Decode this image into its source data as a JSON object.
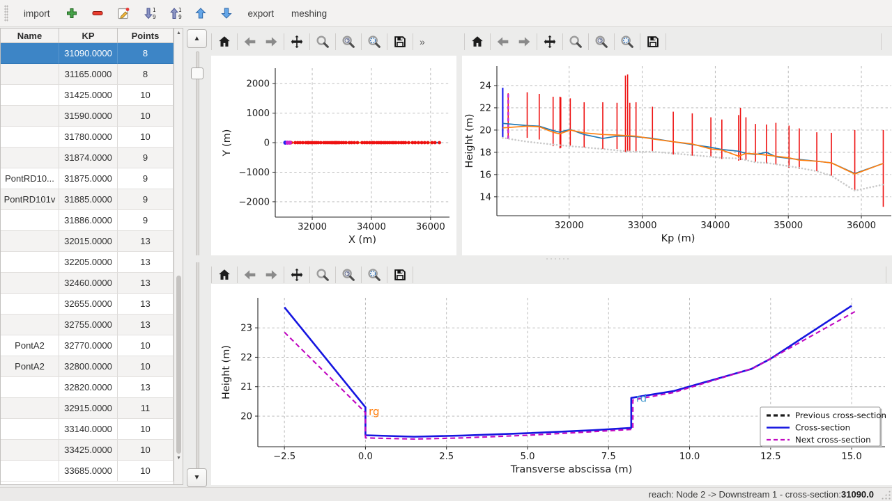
{
  "app_toolbar": {
    "items": [
      {
        "name": "import-button",
        "type": "text",
        "label": "import"
      },
      {
        "name": "add-button",
        "type": "icon",
        "icon": "add"
      },
      {
        "name": "remove-button",
        "type": "icon",
        "icon": "remove"
      },
      {
        "name": "edit-button",
        "type": "icon",
        "icon": "edit"
      },
      {
        "name": "sort-descending-button",
        "type": "icon",
        "icon": "sort-desc"
      },
      {
        "name": "sort-ascending-button",
        "type": "icon",
        "icon": "sort-asc"
      },
      {
        "name": "move-up-button",
        "type": "icon",
        "icon": "arrow-up"
      },
      {
        "name": "move-down-button",
        "type": "icon",
        "icon": "arrow-down"
      },
      {
        "name": "export-button",
        "type": "text",
        "label": "export"
      },
      {
        "name": "meshing-button",
        "type": "text",
        "label": "meshing"
      }
    ]
  },
  "table": {
    "headers": [
      "Name",
      "KP",
      "Points"
    ],
    "selected_index": 0,
    "rows": [
      [
        "",
        "31090.0000",
        "8"
      ],
      [
        "",
        "31165.0000",
        "8"
      ],
      [
        "",
        "31425.0000",
        "10"
      ],
      [
        "",
        "31590.0000",
        "10"
      ],
      [
        "",
        "31780.0000",
        "10"
      ],
      [
        "",
        "31874.0000",
        "9"
      ],
      [
        "PontRD10...",
        "31875.0000",
        "9"
      ],
      [
        "PontRD101v",
        "31885.0000",
        "9"
      ],
      [
        "",
        "31886.0000",
        "9"
      ],
      [
        "",
        "32015.0000",
        "13"
      ],
      [
        "",
        "32205.0000",
        "13"
      ],
      [
        "",
        "32460.0000",
        "13"
      ],
      [
        "",
        "32655.0000",
        "13"
      ],
      [
        "",
        "32755.0000",
        "13"
      ],
      [
        "PontA2",
        "32770.0000",
        "10"
      ],
      [
        "PontA2",
        "32800.0000",
        "10"
      ],
      [
        "",
        "32820.0000",
        "13"
      ],
      [
        "",
        "32915.0000",
        "11"
      ],
      [
        "",
        "33140.0000",
        "10"
      ],
      [
        "",
        "33425.0000",
        "10"
      ],
      [
        "",
        "33685.0000",
        "10"
      ]
    ]
  },
  "plot_toolbar": {
    "buttons": [
      "home",
      "back",
      "forward",
      "pan",
      "zoom",
      "zoom-one",
      "zoom-fit",
      "save"
    ],
    "overflow_label": "»"
  },
  "status_bar": {
    "label": "reach: Node 2 -> Downstream 1 - cross-section: ",
    "value": "31090.0"
  },
  "chart_data": [
    {
      "id": "trajectory",
      "type": "line",
      "xlabel": "X (m)",
      "ylabel": "Y (m)",
      "xlim": [
        30750,
        36640
      ],
      "ylim": [
        -2520,
        2520
      ],
      "xticks": {
        "values": [
          32000,
          34000,
          36000
        ],
        "labels": [
          "32000",
          "34000",
          "36000"
        ]
      },
      "yticks": {
        "values": [
          -2000,
          -1000,
          0,
          1000,
          2000
        ],
        "labels": [
          "−2000",
          "−1000",
          "0",
          "1000",
          "2000"
        ]
      },
      "grid": true,
      "series": [
        {
          "name": "reach-axis-blue",
          "color": "#1f77b4",
          "width": 2.2,
          "points": [
            [
              31090,
              0
            ],
            [
              36300,
              0
            ]
          ]
        },
        {
          "name": "reach-axis-orange",
          "color": "#ff7f0e",
          "width": 2.2,
          "points": [
            [
              31090,
              0
            ],
            [
              36100,
              0
            ]
          ]
        }
      ],
      "red_marker_kps": [
        31165,
        31290,
        31425,
        31510,
        31590,
        31680,
        31780,
        31845,
        31874,
        31886,
        31960,
        32015,
        32085,
        32140,
        32205,
        32290,
        32390,
        32460,
        32530,
        32600,
        32655,
        32700,
        32755,
        32770,
        32800,
        32820,
        32870,
        32915,
        32990,
        33060,
        33140,
        33250,
        33330,
        33425,
        33530,
        33685,
        33770,
        33850,
        33940,
        34030,
        34090,
        34180,
        34250,
        34320,
        34340,
        34420,
        34480,
        34550,
        34620,
        34700,
        34760,
        34830,
        34920,
        35010,
        35080,
        35150,
        35260,
        35390,
        35480,
        35590,
        35700,
        35800,
        35910,
        36050,
        36150,
        36300
      ],
      "red_marker_color": "#ee1111",
      "highlight_markers": [
        {
          "x": 31090,
          "y": 0,
          "color": "#2222ee"
        },
        {
          "x": 31165,
          "y": 0,
          "color": "#cc22cc"
        },
        {
          "x": 31245,
          "y": 0,
          "color": "#cc22cc"
        }
      ]
    },
    {
      "id": "longitudinal-profile",
      "type": "line",
      "xlabel": "Kp (m)",
      "ylabel": "Height (m)",
      "xlim": [
        31010,
        36410
      ],
      "ylim": [
        12.3,
        25.75
      ],
      "xticks": {
        "values": [
          32000,
          33000,
          34000,
          35000,
          36000
        ],
        "labels": [
          "32000",
          "33000",
          "34000",
          "35000",
          "36000"
        ]
      },
      "yticks": {
        "values": [
          14,
          16,
          18,
          20,
          22,
          24
        ],
        "labels": [
          "14",
          "16",
          "18",
          "20",
          "22",
          "24"
        ]
      },
      "grid": true,
      "vlines": [
        {
          "name": "current-cross-section",
          "x": 31090,
          "y0": 19.35,
          "y1": 23.8,
          "color": "#2222ee",
          "width": 2.2,
          "dash": null
        },
        {
          "name": "next-cross-section",
          "x": 31165,
          "y0": 19.2,
          "y1": 23.3,
          "color": "#cc22cc",
          "width": 2.4,
          "dash": "5,3.5"
        }
      ],
      "bars": {
        "color": "#ee1111",
        "width": 1.6,
        "data": [
          [
            31165,
            19.2,
            23.3
          ],
          [
            31425,
            19.3,
            23.4
          ],
          [
            31590,
            19.15,
            23.25
          ],
          [
            31780,
            18.55,
            23.0
          ],
          [
            31874,
            18.35,
            23.0
          ],
          [
            31885,
            18.4,
            22.95
          ],
          [
            32015,
            18.6,
            22.85
          ],
          [
            32205,
            18.45,
            22.5
          ],
          [
            32460,
            18.3,
            22.5
          ],
          [
            32655,
            18.3,
            22.45
          ],
          [
            32770,
            18.05,
            24.9
          ],
          [
            32800,
            18.05,
            25.0
          ],
          [
            32830,
            18.1,
            22.45
          ],
          [
            32915,
            18.05,
            22.5
          ],
          [
            33140,
            18.0,
            22.1
          ],
          [
            33425,
            17.8,
            21.65
          ],
          [
            33685,
            17.7,
            21.5
          ],
          [
            33940,
            17.6,
            21.15
          ],
          [
            34090,
            17.4,
            20.95
          ],
          [
            34320,
            17.25,
            21.35
          ],
          [
            34345,
            17.3,
            22.0
          ],
          [
            34420,
            17.3,
            21.15
          ],
          [
            34550,
            17.15,
            20.55
          ],
          [
            34700,
            17.0,
            20.5
          ],
          [
            34830,
            16.9,
            20.65
          ],
          [
            35010,
            16.6,
            20.4
          ],
          [
            35150,
            16.5,
            20.15
          ],
          [
            35390,
            16.3,
            19.8
          ],
          [
            35590,
            15.9,
            19.75
          ],
          [
            35910,
            14.6,
            20.0
          ],
          [
            36300,
            13.1,
            20.0
          ]
        ]
      },
      "series": [
        {
          "name": "left-bank",
          "color": "#1f77b4",
          "width": 1.7,
          "points": [
            [
              31090,
              20.6
            ],
            [
              31425,
              20.4
            ],
            [
              31590,
              20.35
            ],
            [
              31780,
              19.95
            ],
            [
              31874,
              19.8
            ],
            [
              31886,
              19.85
            ],
            [
              32015,
              20.05
            ],
            [
              32205,
              19.6
            ],
            [
              32460,
              19.25
            ],
            [
              32655,
              19.45
            ],
            [
              32770,
              19.45
            ],
            [
              32915,
              19.4
            ],
            [
              33140,
              19.25
            ],
            [
              33425,
              18.95
            ],
            [
              33685,
              18.7
            ],
            [
              33940,
              18.45
            ],
            [
              34090,
              18.25
            ],
            [
              34320,
              18.1
            ],
            [
              34420,
              17.9
            ],
            [
              34550,
              17.8
            ],
            [
              34700,
              18.0
            ],
            [
              34830,
              17.6
            ],
            [
              35010,
              17.45
            ],
            [
              35150,
              17.35
            ],
            [
              35390,
              17.2
            ],
            [
              35590,
              17.05
            ],
            [
              35910,
              16.1
            ],
            [
              36300,
              17.0
            ]
          ]
        },
        {
          "name": "right-bank",
          "color": "#ff7f0e",
          "width": 1.7,
          "points": [
            [
              31090,
              20.2
            ],
            [
              31425,
              20.35
            ],
            [
              31590,
              20.3
            ],
            [
              31780,
              19.8
            ],
            [
              31874,
              19.65
            ],
            [
              31886,
              19.7
            ],
            [
              32015,
              20.0
            ],
            [
              32205,
              19.75
            ],
            [
              32460,
              19.6
            ],
            [
              32655,
              19.55
            ],
            [
              32770,
              19.5
            ],
            [
              32915,
              19.45
            ],
            [
              33140,
              19.2
            ],
            [
              33425,
              18.95
            ],
            [
              33685,
              18.75
            ],
            [
              33940,
              18.3
            ],
            [
              34090,
              18.2
            ],
            [
              34320,
              17.65
            ],
            [
              34420,
              17.9
            ],
            [
              34550,
              17.85
            ],
            [
              34700,
              17.75
            ],
            [
              34830,
              17.65
            ],
            [
              35010,
              17.5
            ],
            [
              35150,
              17.3
            ],
            [
              35390,
              17.2
            ],
            [
              35590,
              17.05
            ],
            [
              35910,
              16.05
            ],
            [
              36300,
              17.0
            ]
          ]
        },
        {
          "name": "lowest-point",
          "color": "#c9c9c9",
          "width": 2.6,
          "dash": "0.1,4.5",
          "linecap": "round",
          "points": [
            [
              31090,
              19.3
            ],
            [
              31425,
              18.95
            ],
            [
              31780,
              18.7
            ],
            [
              32015,
              18.55
            ],
            [
              32460,
              18.3
            ],
            [
              32770,
              18.1
            ],
            [
              32915,
              18.05
            ],
            [
              33140,
              18.05
            ],
            [
              33425,
              17.9
            ],
            [
              33685,
              17.75
            ],
            [
              33940,
              17.6
            ],
            [
              34090,
              17.5
            ],
            [
              34320,
              17.45
            ],
            [
              34550,
              17.1
            ],
            [
              34700,
              17.05
            ],
            [
              35010,
              16.75
            ],
            [
              35150,
              16.6
            ],
            [
              35390,
              16.3
            ],
            [
              35590,
              15.9
            ],
            [
              35910,
              14.55
            ],
            [
              36300,
              15.1
            ]
          ]
        }
      ]
    },
    {
      "id": "cross-section",
      "type": "line",
      "xlabel": "Transverse abscissa (m)",
      "ylabel": "Height (m)",
      "xlim": [
        -3.32,
        16.03
      ],
      "ylim": [
        18.96,
        24.02
      ],
      "xticks": {
        "values": [
          -2.5,
          0.0,
          2.5,
          5.0,
          7.5,
          10.0,
          12.5,
          15.0
        ],
        "labels": [
          "−2.5",
          "0.0",
          "2.5",
          "5.0",
          "7.5",
          "10.0",
          "12.5",
          "15.0"
        ]
      },
      "yticks": {
        "values": [
          20,
          21,
          22,
          23
        ],
        "labels": [
          "20",
          "21",
          "22",
          "23"
        ]
      },
      "grid": true,
      "series": [
        {
          "name": "cross-section",
          "color": "#1515e0",
          "width": 2.6,
          "points": [
            [
              -2.5,
              23.7
            ],
            [
              0,
              20.3
            ],
            [
              0,
              19.35
            ],
            [
              1.5,
              19.3
            ],
            [
              3,
              19.34
            ],
            [
              5,
              19.42
            ],
            [
              7,
              19.52
            ],
            [
              8.2,
              19.6
            ],
            [
              8.2,
              20.62
            ],
            [
              9.5,
              20.85
            ],
            [
              11.9,
              21.6
            ],
            [
              12.5,
              21.95
            ],
            [
              15,
              23.75
            ]
          ]
        },
        {
          "name": "next-cross-section",
          "color": "#c109c1",
          "width": 2.1,
          "dash": "7,4.5",
          "points": [
            [
              -2.5,
              22.85
            ],
            [
              0,
              20.12
            ],
            [
              0,
              19.26
            ],
            [
              1.5,
              19.22
            ],
            [
              3,
              19.26
            ],
            [
              5,
              19.35
            ],
            [
              7,
              19.47
            ],
            [
              8.25,
              19.55
            ],
            [
              8.25,
              20.55
            ],
            [
              9.5,
              20.8
            ],
            [
              11.95,
              21.62
            ],
            [
              12.55,
              21.98
            ],
            [
              15.1,
              23.55
            ]
          ]
        }
      ],
      "annotations": [
        {
          "text": "rg",
          "color": "#ff7f0e",
          "x": 0.1,
          "y": 20.03
        },
        {
          "text": "rd",
          "color": "#4c9ed0",
          "x": 8.35,
          "y": 20.48
        }
      ],
      "legend": {
        "position": "lower-right",
        "entries": [
          {
            "label": "Previous cross-section",
            "color": "#1a1a1a",
            "dash": "6,4",
            "width": 3.2
          },
          {
            "label": "Cross-section",
            "color": "#1515e0",
            "dash": null,
            "width": 2.6
          },
          {
            "label": "Next cross-section",
            "color": "#c109c1",
            "dash": "6,4",
            "width": 2.2
          }
        ]
      }
    }
  ]
}
